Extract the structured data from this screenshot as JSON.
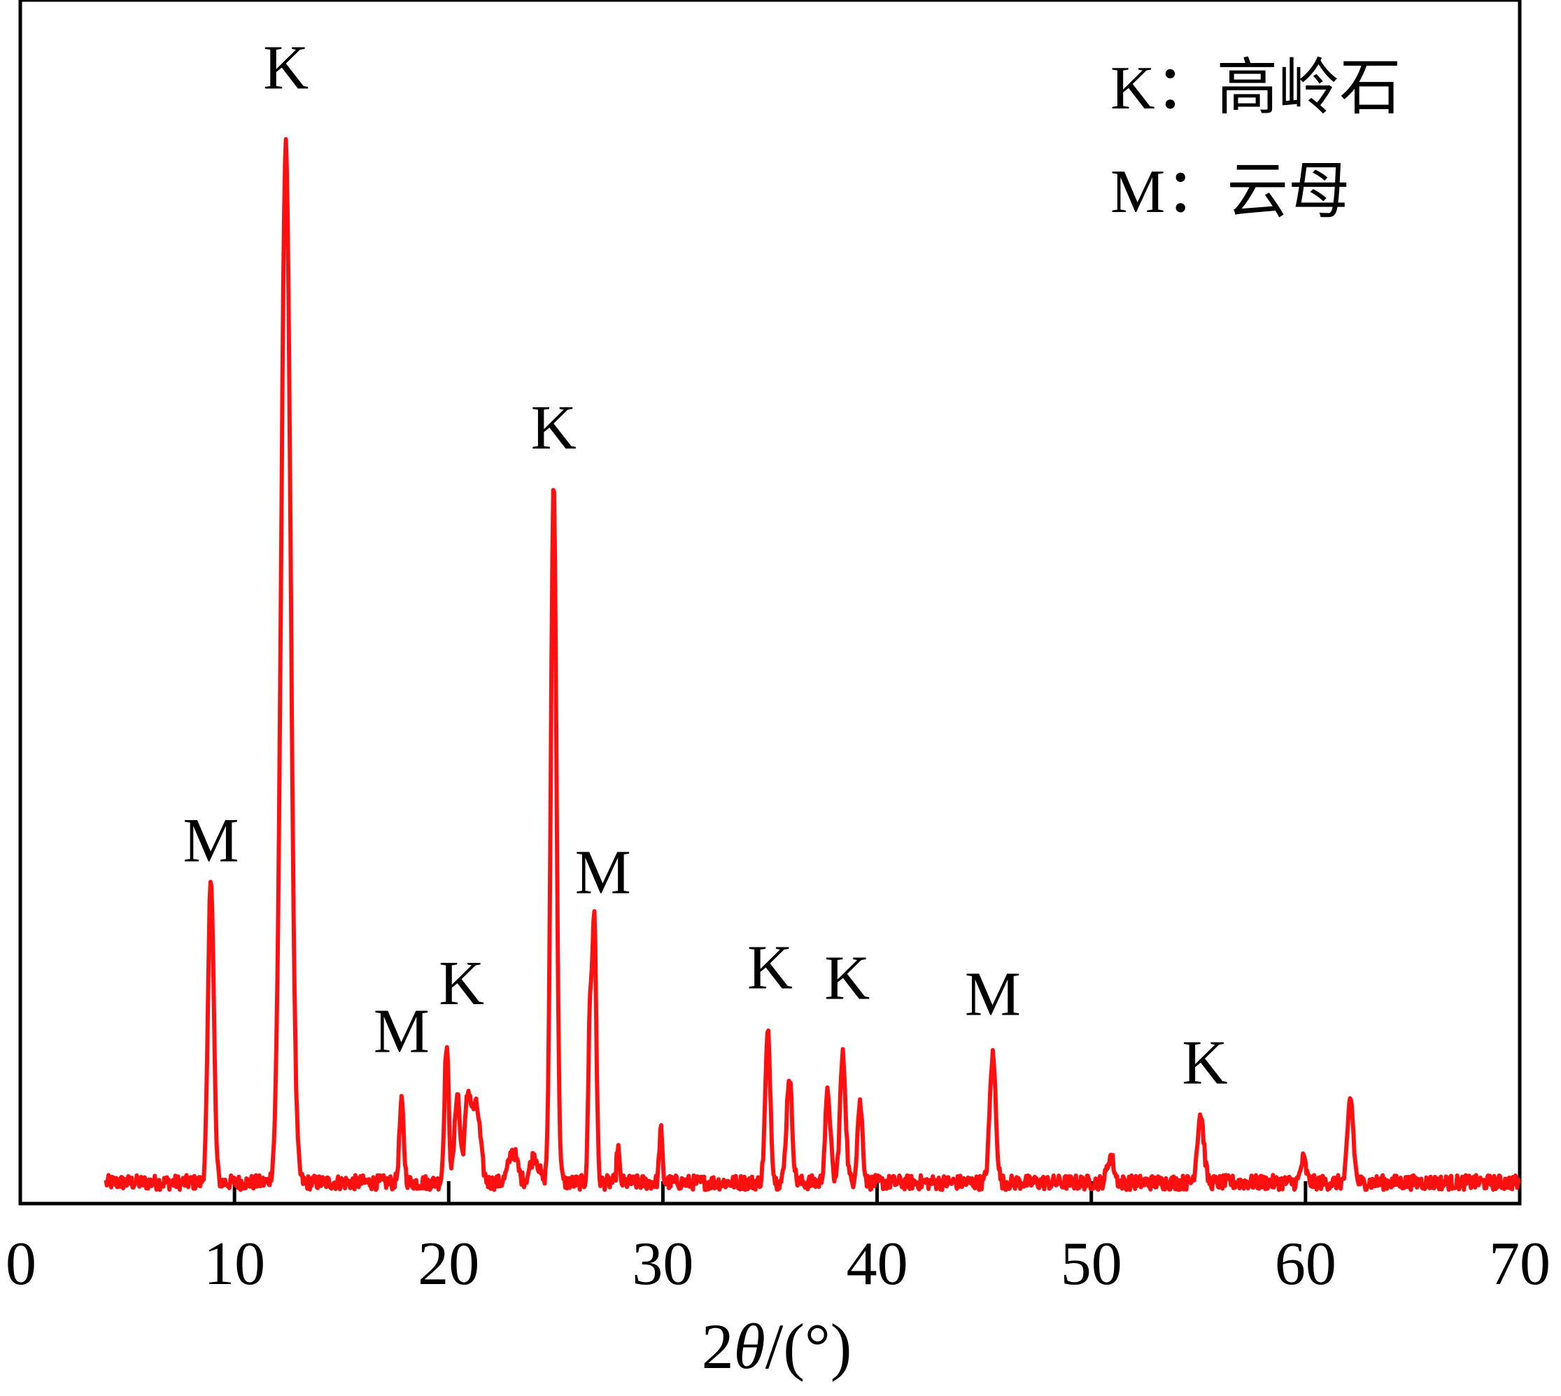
{
  "chart_data": {
    "type": "line",
    "xlabel": "2θ/(°)",
    "xlabel_parts": {
      "prefix": "2",
      "theta": "θ",
      "suffix": "/(°)"
    },
    "xlim": [
      0,
      70
    ],
    "x_ticks": [
      0,
      10,
      20,
      30,
      40,
      50,
      60,
      70
    ],
    "x_tick_labels": [
      "0",
      "10",
      "20",
      "30",
      "40",
      "50",
      "60",
      "70"
    ],
    "ylabel": "",
    "y_ticks_shown": false,
    "grid": false,
    "legend_position": "top-right",
    "colors": {
      "series": "#ff1010",
      "axes": "#000000"
    },
    "legend": [
      {
        "key": "K",
        "text": "K：高岭石"
      },
      {
        "key": "M",
        "text": "M：云母"
      }
    ],
    "series": [
      {
        "baseline_relative": 0.012,
        "noise_relative": 0.007,
        "x_start": 4,
        "x_end": 70,
        "peaks": [
          {
            "x": 8.9,
            "y": 0.29,
            "w": 0.13
          },
          {
            "x": 12.4,
            "y": 0.98,
            "w": 0.22
          },
          {
            "x": 17.8,
            "y": 0.075,
            "w": 0.1
          },
          {
            "x": 19.9,
            "y": 0.13,
            "w": 0.1
          },
          {
            "x": 20.4,
            "y": 0.085,
            "w": 0.12
          },
          {
            "x": 20.9,
            "y": 0.08,
            "w": 0.15
          },
          {
            "x": 21.3,
            "y": 0.07,
            "w": 0.18
          },
          {
            "x": 23.0,
            "y": 0.03,
            "w": 0.2
          },
          {
            "x": 24.0,
            "y": 0.025,
            "w": 0.2
          },
          {
            "x": 24.9,
            "y": 0.66,
            "w": 0.13
          },
          {
            "x": 26.6,
            "y": 0.16,
            "w": 0.08
          },
          {
            "x": 26.8,
            "y": 0.25,
            "w": 0.09
          },
          {
            "x": 27.9,
            "y": 0.035,
            "w": 0.06
          },
          {
            "x": 29.9,
            "y": 0.05,
            "w": 0.07
          },
          {
            "x": 34.9,
            "y": 0.14,
            "w": 0.12
          },
          {
            "x": 35.9,
            "y": 0.1,
            "w": 0.13
          },
          {
            "x": 37.7,
            "y": 0.085,
            "w": 0.12
          },
          {
            "x": 38.4,
            "y": 0.12,
            "w": 0.13
          },
          {
            "x": 39.2,
            "y": 0.075,
            "w": 0.12
          },
          {
            "x": 45.4,
            "y": 0.12,
            "w": 0.14
          },
          {
            "x": 50.9,
            "y": 0.025,
            "w": 0.15
          },
          {
            "x": 55.1,
            "y": 0.065,
            "w": 0.15
          },
          {
            "x": 59.9,
            "y": 0.022,
            "w": 0.12
          },
          {
            "x": 62.1,
            "y": 0.08,
            "w": 0.13
          }
        ]
      }
    ],
    "peak_labels": [
      {
        "text": "M",
        "x": 8.9,
        "y": 0.31
      },
      {
        "text": "K",
        "x": 12.4,
        "y": 1.04
      },
      {
        "text": "M",
        "x": 17.8,
        "y": 0.13
      },
      {
        "text": "K",
        "x": 20.6,
        "y": 0.175
      },
      {
        "text": "K",
        "x": 24.9,
        "y": 0.7
      },
      {
        "text": "M",
        "x": 27.2,
        "y": 0.28
      },
      {
        "text": "K",
        "x": 35.0,
        "y": 0.19
      },
      {
        "text": "K",
        "x": 38.6,
        "y": 0.18
      },
      {
        "text": "M",
        "x": 45.4,
        "y": 0.165
      },
      {
        "text": "K",
        "x": 55.3,
        "y": 0.1
      }
    ]
  }
}
